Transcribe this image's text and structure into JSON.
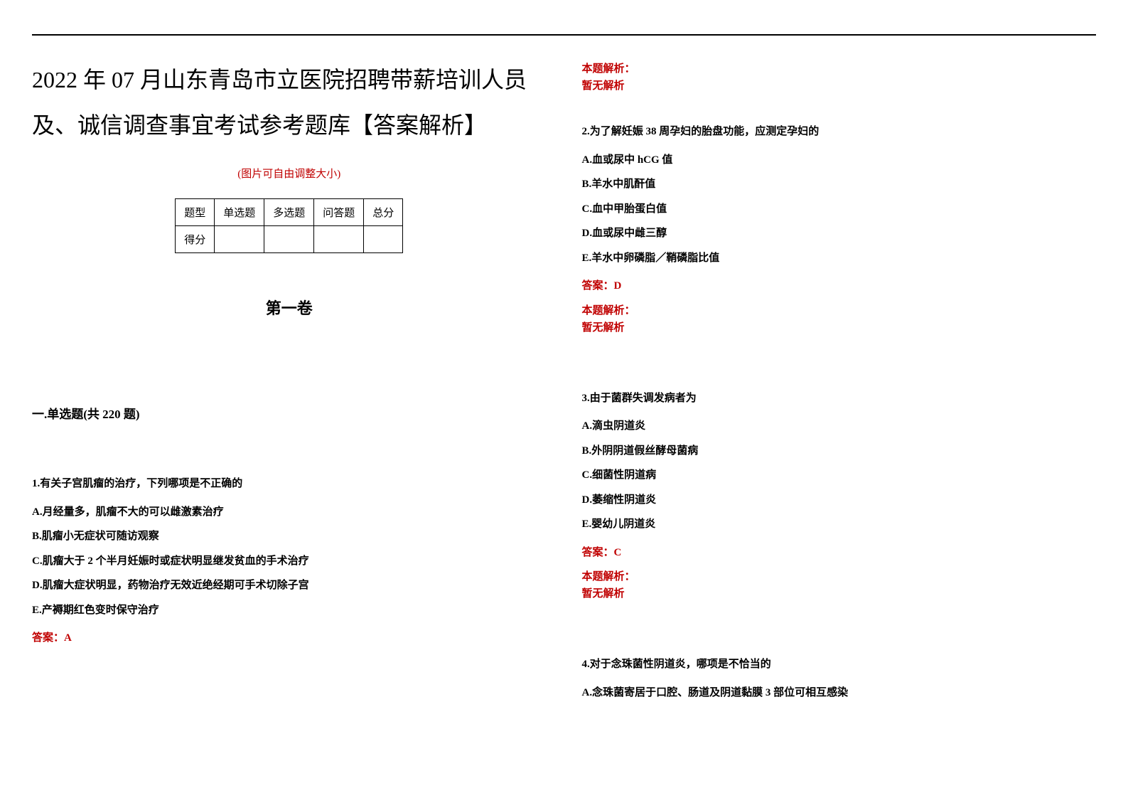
{
  "title": "2022 年 07 月山东青岛市立医院招聘带薪培训人员及、诚信调查事宜考试参考题库【答案解析】",
  "image_hint": "(图片可自由调整大小)",
  "score_table": {
    "headers": [
      "题型",
      "单选题",
      "多选题",
      "问答题",
      "总分"
    ],
    "row_label": "得分"
  },
  "volume_title": "第一卷",
  "section_title": "一.单选题(共 220 题)",
  "questions": [
    {
      "stem": "1.有关子宫肌瘤的治疗，下列哪项是不正确的",
      "options": [
        "A.月经量多，肌瘤不大的可以雌激素治疗",
        "B.肌瘤小无症状可随访观察",
        "C.肌瘤大于 2 个半月妊娠时或症状明显继发贫血的手术治疗",
        "D.肌瘤大症状明显，药物治疗无效近绝经期可手术切除子宫",
        "E.产褥期红色变时保守治疗"
      ],
      "answer": "答案：A",
      "analysis_label": "本题解析：",
      "analysis_text": "暂无解析"
    },
    {
      "stem": "2.为了解妊娠 38 周孕妇的胎盘功能，应测定孕妇的",
      "options": [
        "A.血或尿中 hCG 值",
        "B.羊水中肌酐值",
        "C.血中甲胎蛋白值",
        "D.血或尿中雌三醇",
        "E.羊水中卵磷脂／鞘磷脂比值"
      ],
      "answer": "答案：D",
      "analysis_label": "本题解析：",
      "analysis_text": "暂无解析"
    },
    {
      "stem": "3.由于菌群失调发病者为",
      "options": [
        "A.滴虫阴道炎",
        "B.外阴阴道假丝酵母菌病",
        "C.细菌性阴道病",
        "D.萎缩性阴道炎",
        "E.婴幼儿阴道炎"
      ],
      "answer": "答案：C",
      "analysis_label": "本题解析：",
      "analysis_text": "暂无解析"
    },
    {
      "stem": "4.对于念珠菌性阴道炎，哪项是不恰当的",
      "options": [
        "A.念珠菌寄居于口腔、肠道及阴道黏膜 3 部位可相互感染"
      ],
      "answer": "",
      "analysis_label": "",
      "analysis_text": ""
    }
  ],
  "colors": {
    "accent": "#c00000",
    "text": "#000000",
    "background": "#ffffff"
  }
}
